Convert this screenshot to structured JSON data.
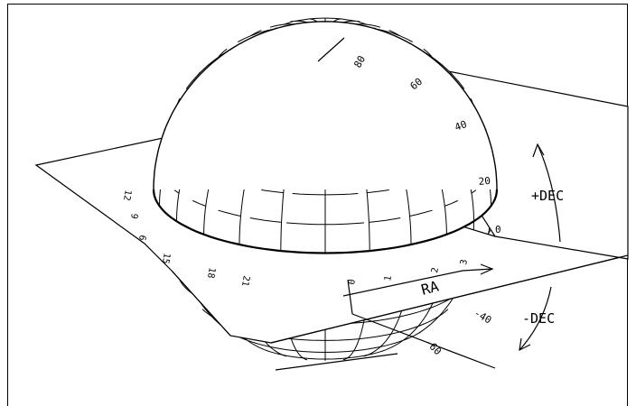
{
  "diagram": {
    "dec_labels_upper": [
      "80",
      "60",
      "40",
      "20",
      "0"
    ],
    "dec_labels_lower": [
      "-40",
      "-60"
    ],
    "ra_labels": [
      "0",
      "1",
      "2",
      "3",
      "6",
      "9",
      "12",
      "15",
      "18",
      "21"
    ],
    "axis_labels": {
      "ra": "RA",
      "plus_dec": "+DEC",
      "minus_dec": "-DEC"
    },
    "colors": {
      "line": "#000000",
      "background": "#ffffff"
    }
  }
}
